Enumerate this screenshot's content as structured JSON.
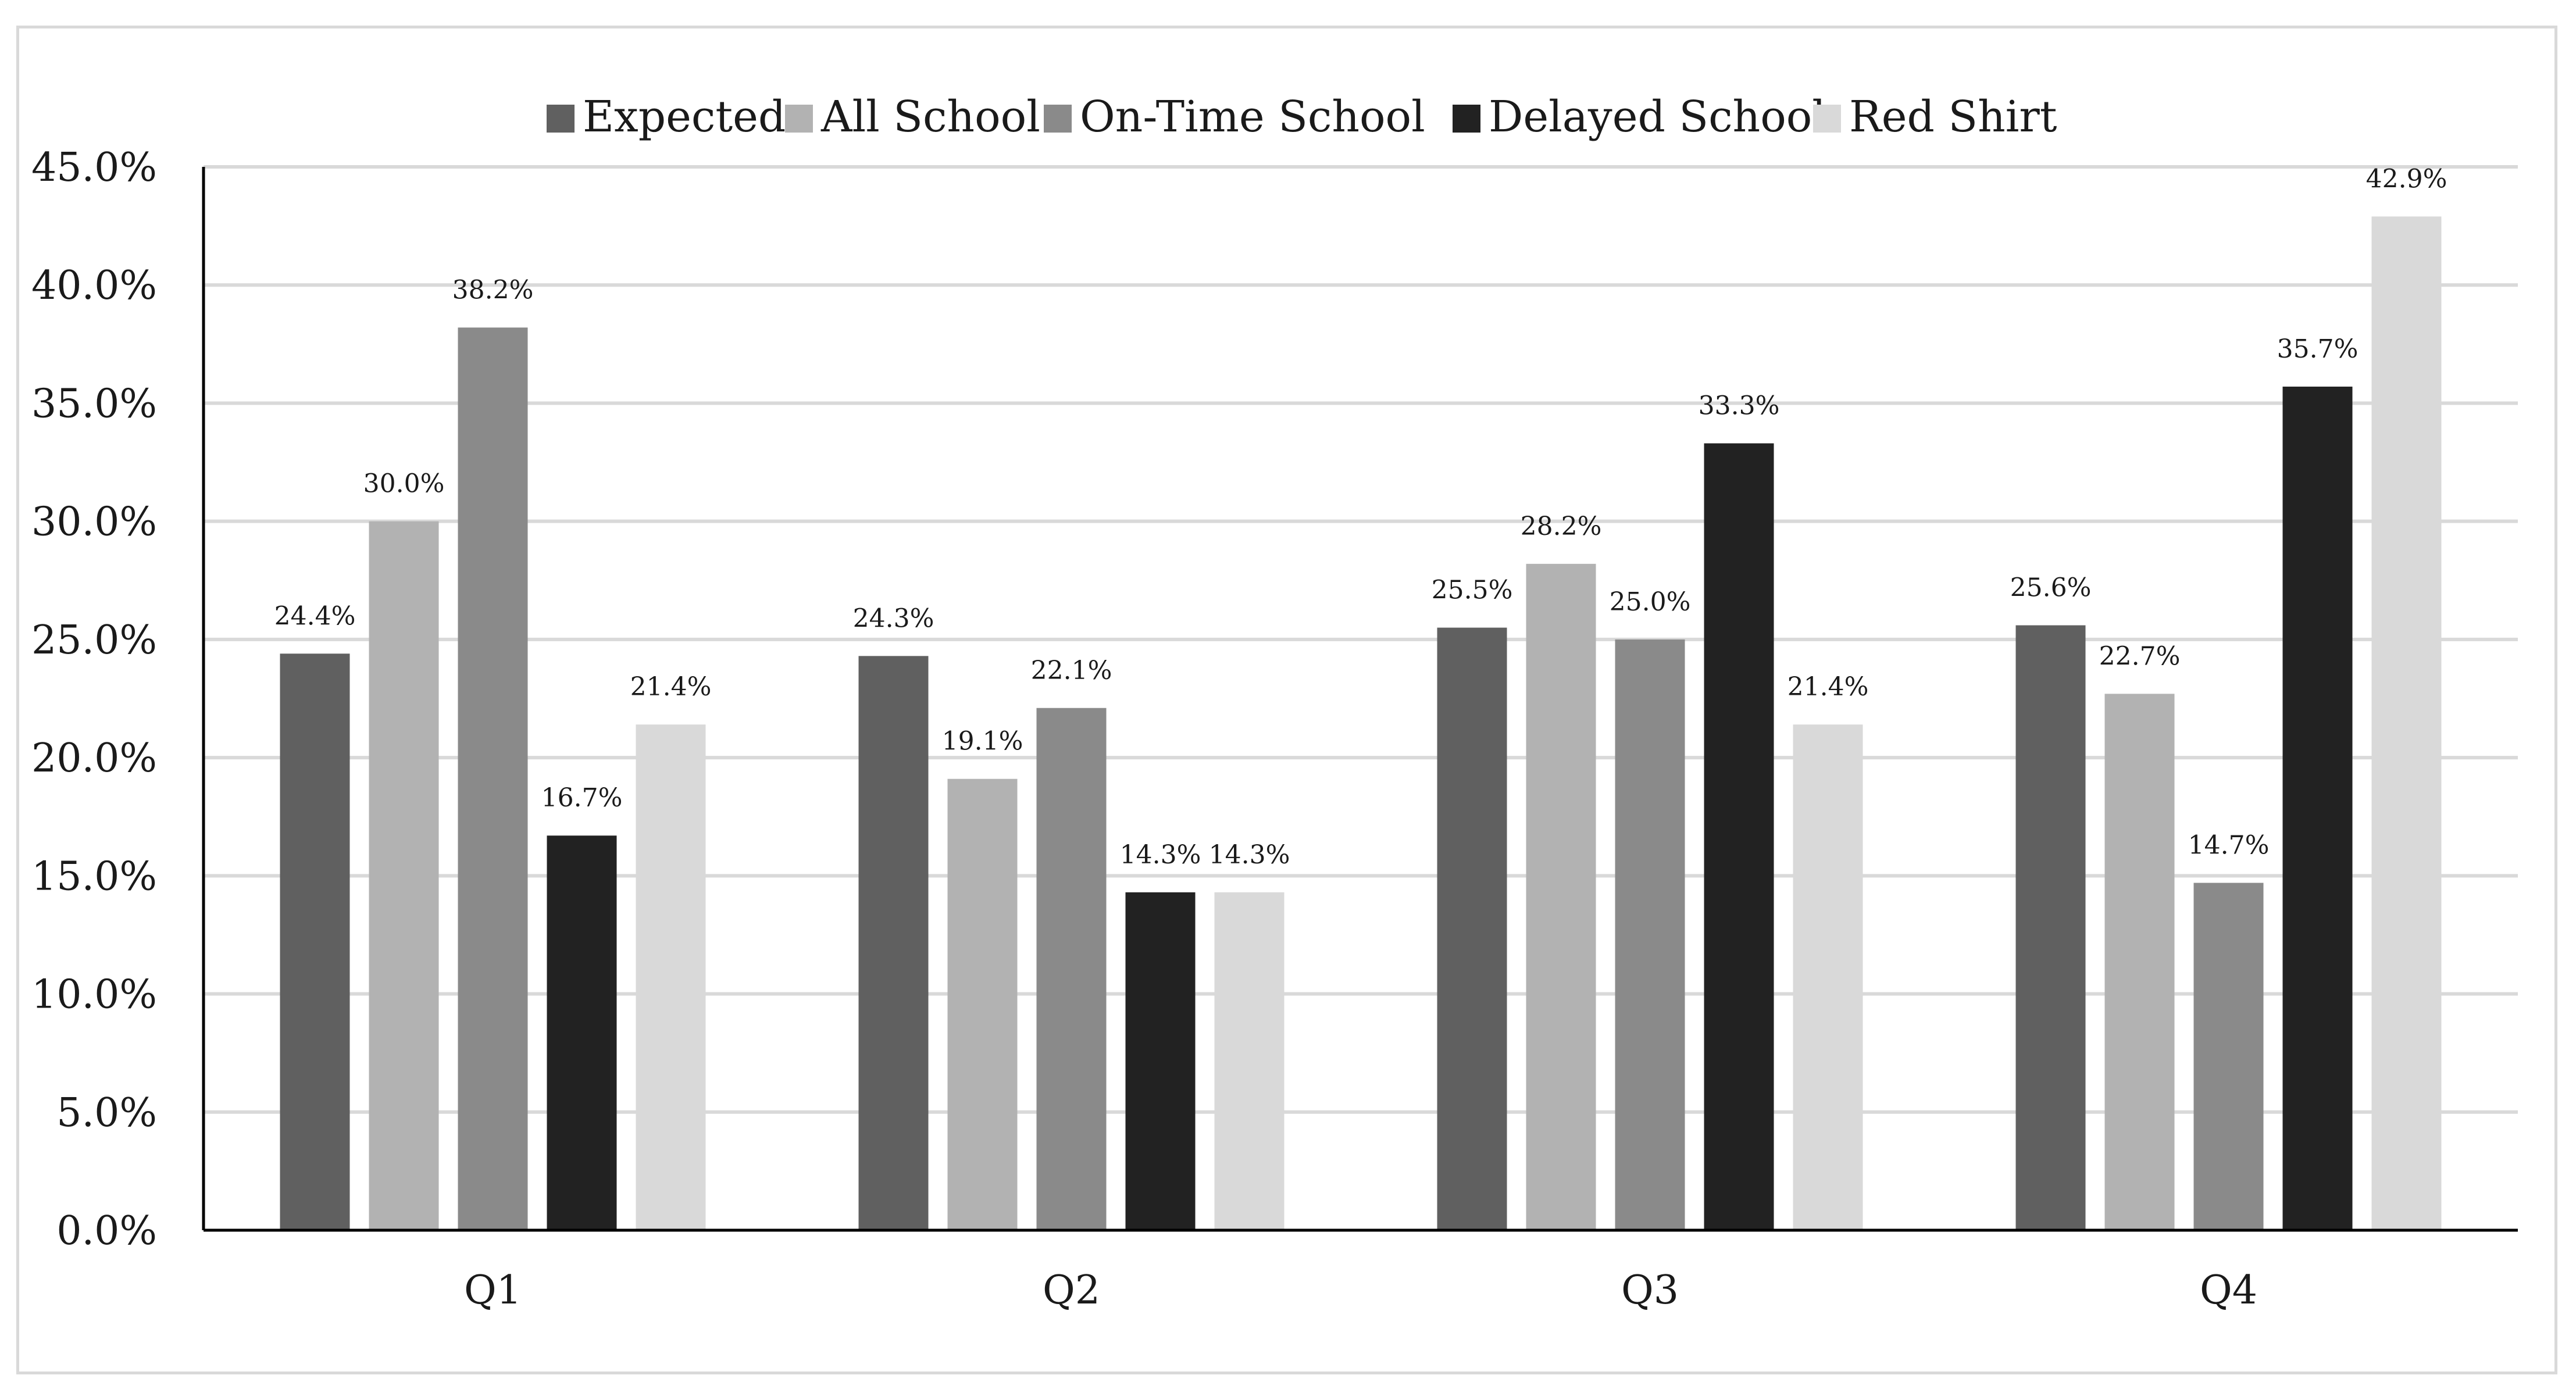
{
  "chart_data": {
    "type": "bar",
    "title": "",
    "xlabel": "",
    "ylabel": "",
    "categories": [
      "Q1",
      "Q2",
      "Q3",
      "Q4"
    ],
    "series": [
      {
        "name": "Expected",
        "color": "#606060",
        "values": [
          24.4,
          24.3,
          25.5,
          25.6
        ],
        "labels": [
          "24.4%",
          "24.3%",
          "25.5%",
          "25.6%"
        ]
      },
      {
        "name": "All School",
        "color": "#b2b2b2",
        "values": [
          30.0,
          19.1,
          28.2,
          22.7
        ],
        "labels": [
          "30.0%",
          "19.1%",
          "28.2%",
          "22.7%"
        ]
      },
      {
        "name": "On-Time School",
        "color": "#8a8a8a",
        "values": [
          38.2,
          22.1,
          25.0,
          14.7
        ],
        "labels": [
          "38.2%",
          "22.1%",
          "25.0%",
          "14.7%"
        ]
      },
      {
        "name": "Delayed School",
        "color": "#222222",
        "values": [
          16.7,
          14.3,
          33.3,
          35.7
        ],
        "labels": [
          "16.7%",
          "14.3%",
          "33.3%",
          "35.7%"
        ]
      },
      {
        "name": "Red Shirt",
        "color": "#d9d9d9",
        "values": [
          21.4,
          14.3,
          21.4,
          42.9
        ],
        "labels": [
          "21.4%",
          "14.3%",
          "21.4%",
          "42.9%"
        ]
      }
    ],
    "ylim": [
      0,
      45
    ],
    "yticks": [
      0,
      5,
      10,
      15,
      20,
      25,
      30,
      35,
      40,
      45
    ],
    "ytick_labels": [
      "0.0%",
      "5.0%",
      "10.0%",
      "15.0%",
      "20.0%",
      "25.0%",
      "30.0%",
      "35.0%",
      "40.0%",
      "45.0%"
    ],
    "grid": true,
    "legend_position": "top-center",
    "gridline_color": "#d9d9d9",
    "axis_color": "#000000"
  }
}
